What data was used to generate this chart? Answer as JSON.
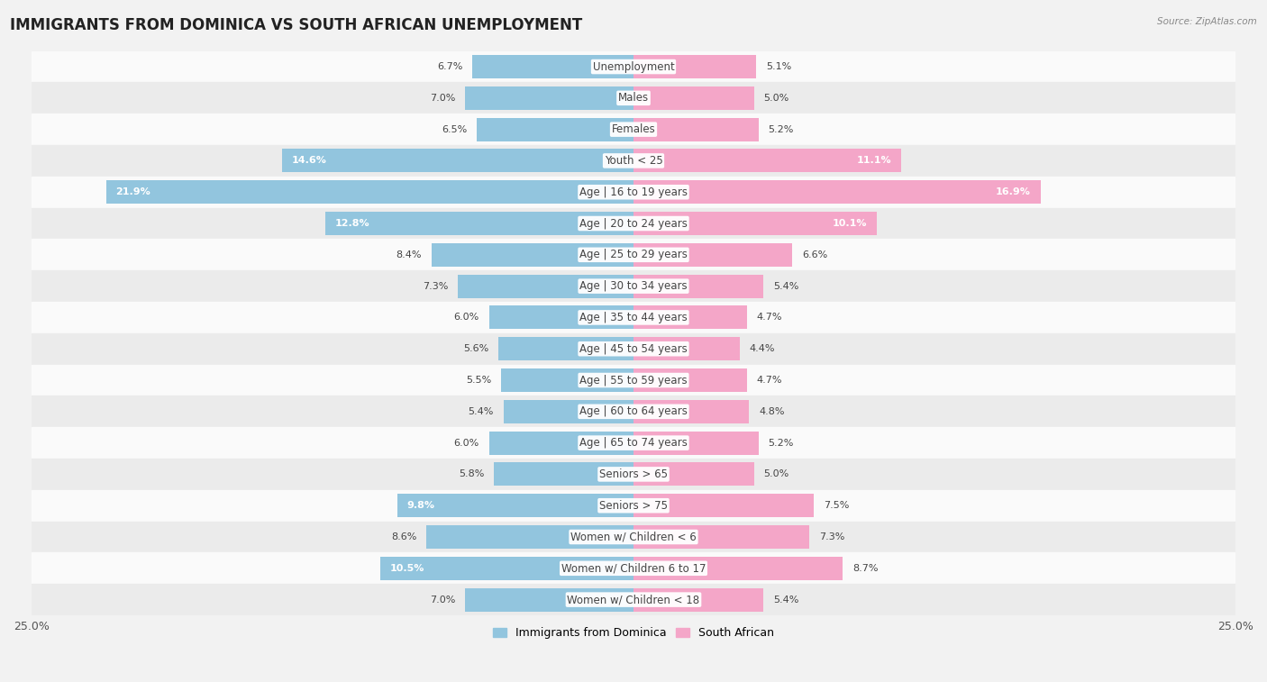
{
  "title": "IMMIGRANTS FROM DOMINICA VS SOUTH AFRICAN UNEMPLOYMENT",
  "source": "Source: ZipAtlas.com",
  "categories": [
    "Unemployment",
    "Males",
    "Females",
    "Youth < 25",
    "Age | 16 to 19 years",
    "Age | 20 to 24 years",
    "Age | 25 to 29 years",
    "Age | 30 to 34 years",
    "Age | 35 to 44 years",
    "Age | 45 to 54 years",
    "Age | 55 to 59 years",
    "Age | 60 to 64 years",
    "Age | 65 to 74 years",
    "Seniors > 65",
    "Seniors > 75",
    "Women w/ Children < 6",
    "Women w/ Children 6 to 17",
    "Women w/ Children < 18"
  ],
  "left_values": [
    6.7,
    7.0,
    6.5,
    14.6,
    21.9,
    12.8,
    8.4,
    7.3,
    6.0,
    5.6,
    5.5,
    5.4,
    6.0,
    5.8,
    9.8,
    8.6,
    10.5,
    7.0
  ],
  "right_values": [
    5.1,
    5.0,
    5.2,
    11.1,
    16.9,
    10.1,
    6.6,
    5.4,
    4.7,
    4.4,
    4.7,
    4.8,
    5.2,
    5.0,
    7.5,
    7.3,
    8.7,
    5.4
  ],
  "left_color": "#92c5de",
  "right_color": "#f4a6c8",
  "left_label": "Immigrants from Dominica",
  "right_label": "South African",
  "xlim": 25.0,
  "bg_color": "#f2f2f2",
  "row_colors": [
    "#fafafa",
    "#ebebeb"
  ],
  "title_fontsize": 12,
  "label_fontsize": 8.5,
  "value_fontsize": 8.0,
  "white_text_threshold": 9.0
}
